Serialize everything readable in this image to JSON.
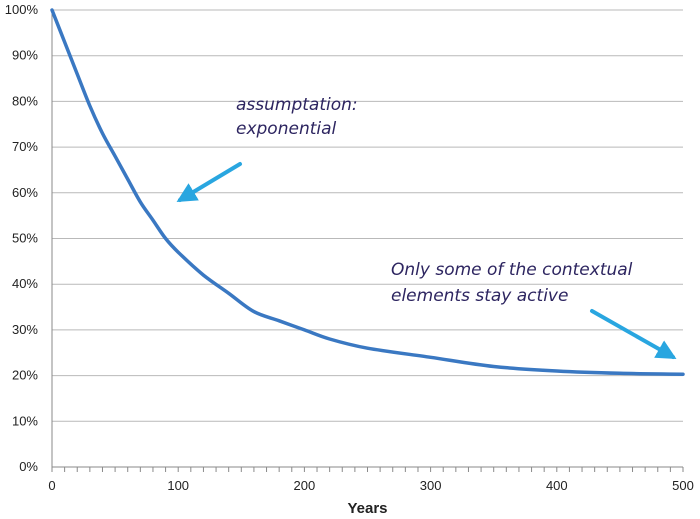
{
  "chart_data": {
    "type": "line",
    "title": "",
    "xlabel": "Years",
    "ylabel": "",
    "xlim": [
      0,
      500
    ],
    "ylim": [
      0,
      100
    ],
    "x_ticks": [
      "0",
      "100",
      "200",
      "300",
      "400",
      "500"
    ],
    "y_ticks": [
      "0%",
      "10%",
      "20%",
      "30%",
      "40%",
      "50%",
      "60%",
      "70%",
      "80%",
      "90%",
      "100%"
    ],
    "grid": true,
    "legend": "none",
    "series": [
      {
        "color": "#3a78c2",
        "x": [
          0,
          10,
          20,
          30,
          40,
          50,
          60,
          70,
          80,
          90,
          100,
          120,
          140,
          160,
          180,
          200,
          220,
          250,
          300,
          350,
          400,
          450,
          500
        ],
        "y": [
          100,
          93,
          86,
          79,
          73,
          68,
          63,
          58,
          54,
          50,
          47,
          42,
          38,
          34,
          32,
          30,
          28,
          26,
          24,
          22,
          21,
          20.5,
          20.3
        ]
      }
    ],
    "annotations": [
      {
        "lines": [
          "assumptation:",
          "exponential"
        ],
        "arrow_color": "#29a6e0"
      },
      {
        "lines": [
          "Only some of the contextual",
          "elements stay active"
        ],
        "arrow_color": "#29a6e0"
      }
    ]
  }
}
